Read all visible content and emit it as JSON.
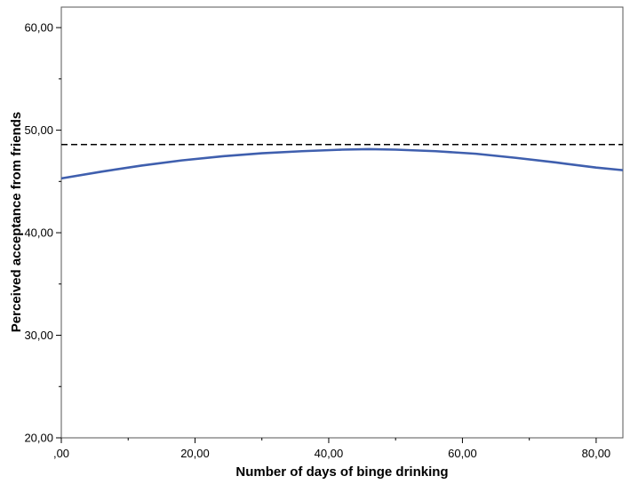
{
  "chart_data": {
    "type": "line",
    "title": "",
    "xlabel": "Number of days of binge drinking",
    "ylabel": "Perceived acceptance from friends",
    "xlim": [
      0,
      84
    ],
    "ylim": [
      20,
      62
    ],
    "x_ticks": [
      0,
      20,
      40,
      60,
      80
    ],
    "x_tick_labels": [
      ",00",
      "20,00",
      "40,00",
      "60,00",
      "80,00"
    ],
    "y_ticks": [
      20,
      30,
      40,
      50,
      60
    ],
    "y_tick_labels": [
      "20,00",
      "30,00",
      "40,00",
      "50,00",
      "60,00"
    ],
    "grid": false,
    "series": [
      {
        "style": "solid",
        "color": "#3f5fae",
        "x": [
          0,
          6,
          12,
          18,
          24,
          30,
          36,
          42,
          46,
          50,
          56,
          62,
          68,
          74,
          80,
          84
        ],
        "y": [
          45.3,
          45.95,
          46.55,
          47.05,
          47.45,
          47.75,
          47.95,
          48.1,
          48.15,
          48.1,
          47.95,
          47.7,
          47.3,
          46.85,
          46.35,
          46.1
        ]
      },
      {
        "style": "dashed",
        "color": "#000000",
        "x": [
          0,
          84
        ],
        "y": [
          48.6,
          48.6
        ]
      }
    ]
  }
}
